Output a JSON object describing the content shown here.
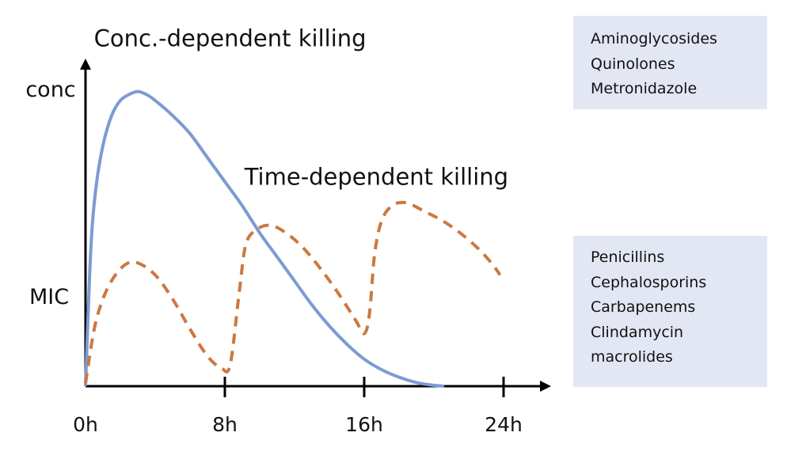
{
  "chart_data": {
    "type": "line",
    "title": "",
    "xlabel": "",
    "ylabel": "conc",
    "y_reference_label": "MIC",
    "x_ticks": [
      {
        "value": 0,
        "label": "0h"
      },
      {
        "value": 8,
        "label": "8h"
      },
      {
        "value": 16,
        "label": "16h"
      },
      {
        "value": 24,
        "label": "24h"
      }
    ],
    "xlim": [
      0,
      26
    ],
    "ylim": [
      0,
      1.0
    ],
    "y_scale_note": "relative concentration: 0 = baseline, 1 = 'conc' label level",
    "grid": false,
    "series": [
      {
        "name": "Conc.-dependent killing",
        "color": "#7b9bd2",
        "style": "solid",
        "points": [
          [
            0,
            0
          ],
          [
            0.3,
            0.45
          ],
          [
            0.6,
            0.66
          ],
          [
            1.0,
            0.8
          ],
          [
            1.5,
            0.9
          ],
          [
            2.0,
            0.95
          ],
          [
            2.5,
            0.97
          ],
          [
            3.0,
            0.98
          ],
          [
            3.5,
            0.97
          ],
          [
            4.0,
            0.95
          ],
          [
            5.0,
            0.9
          ],
          [
            6.0,
            0.84
          ],
          [
            7.0,
            0.76
          ],
          [
            8.0,
            0.68
          ],
          [
            9.0,
            0.6
          ],
          [
            10.0,
            0.51
          ],
          [
            11.0,
            0.43
          ],
          [
            12.0,
            0.35
          ],
          [
            13.0,
            0.27
          ],
          [
            14.0,
            0.2
          ],
          [
            15.0,
            0.14
          ],
          [
            16.0,
            0.09
          ],
          [
            17.0,
            0.055
          ],
          [
            18.0,
            0.03
          ],
          [
            19.0,
            0.012
          ],
          [
            20.0,
            0.003
          ],
          [
            20.6,
            0.0
          ]
        ]
      },
      {
        "name": "Time-dependent killing",
        "color": "#cc7840",
        "style": "dashed",
        "points": [
          [
            0,
            0.01
          ],
          [
            0.5,
            0.19
          ],
          [
            1.0,
            0.29
          ],
          [
            1.6,
            0.36
          ],
          [
            2.3,
            0.405
          ],
          [
            3.0,
            0.41
          ],
          [
            4.0,
            0.37
          ],
          [
            5.0,
            0.29
          ],
          [
            6.0,
            0.19
          ],
          [
            7.0,
            0.1
          ],
          [
            7.8,
            0.06
          ],
          [
            8.3,
            0.07
          ],
          [
            8.8,
            0.3
          ],
          [
            9.2,
            0.47
          ],
          [
            9.8,
            0.52
          ],
          [
            10.6,
            0.535
          ],
          [
            11.5,
            0.51
          ],
          [
            12.5,
            0.46
          ],
          [
            13.5,
            0.39
          ],
          [
            14.5,
            0.31
          ],
          [
            15.5,
            0.22
          ],
          [
            16.0,
            0.175
          ],
          [
            16.3,
            0.24
          ],
          [
            16.6,
            0.44
          ],
          [
            17.0,
            0.55
          ],
          [
            17.6,
            0.6
          ],
          [
            18.4,
            0.61
          ],
          [
            19.5,
            0.58
          ],
          [
            20.5,
            0.55
          ],
          [
            21.5,
            0.51
          ],
          [
            22.5,
            0.46
          ],
          [
            23.3,
            0.41
          ],
          [
            23.8,
            0.37
          ]
        ]
      }
    ],
    "annotations": [
      {
        "text": "Conc.-dependent killing",
        "x": 8.3,
        "y": 1.13
      },
      {
        "text": "Time-dependent killing",
        "x": 16.7,
        "y": 0.67
      }
    ],
    "mic_level": 0.3
  },
  "drug_boxes": {
    "conc_dependent": {
      "color": "#e2e7f3",
      "items": [
        "Aminoglycosides",
        "Quinolones",
        "Metronidazole"
      ]
    },
    "time_dependent": {
      "color": "#e2e7f3",
      "items": [
        "Penicillins",
        "Cephalosporins",
        "Carbapenems",
        "Clindamycin",
        "macrolides"
      ]
    }
  }
}
